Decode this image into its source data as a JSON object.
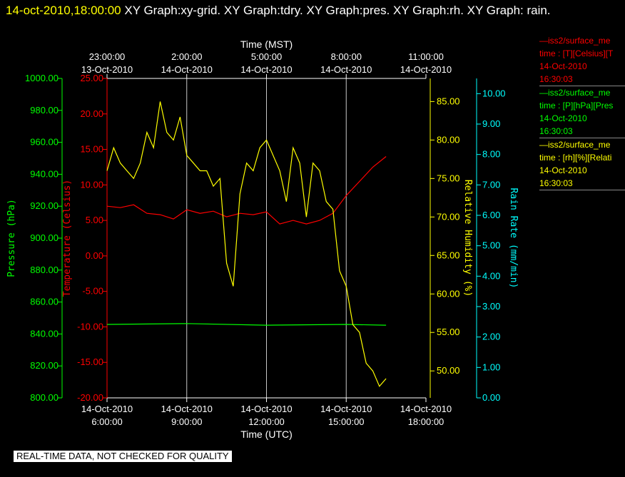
{
  "header": {
    "timestamp": "14-oct-2010,18:00:00",
    "graphs": "XY Graph:xy-grid.  XY Graph:tdry.  XY Graph:pres.  XY Graph:rh.  XY Graph: rain."
  },
  "notice": "REAL-TIME DATA, NOT CHECKED FOR QUALITY",
  "legend": [
    {
      "name": "—iss2/surface_me",
      "line2": "time : [T][Celsius][T",
      "line3": "14-Oct-2010",
      "line4": "16:30:03",
      "color": "#ff0000"
    },
    {
      "name": "—iss2/surface_me",
      "line2": "time : [P][hPa][Pres",
      "line3": "14-Oct-2010",
      "line4": "16:30:03",
      "color": "#00ff00"
    },
    {
      "name": "—iss2/surface_me",
      "line2": "time : [rh][%][Relati",
      "line3": "14-Oct-2010",
      "line4": "16:30:03",
      "color": "#ffff00"
    }
  ],
  "chart_data": {
    "type": "line",
    "title_top": "Time (MST)",
    "title_bottom": "Time (UTC)",
    "x_ticks_bottom": [
      {
        "date": "14-Oct-2010",
        "time": "6:00:00",
        "hours": 6
      },
      {
        "date": "14-Oct-2010",
        "time": "9:00:00",
        "hours": 9
      },
      {
        "date": "14-Oct-2010",
        "time": "12:00:00",
        "hours": 12
      },
      {
        "date": "14-Oct-2010",
        "time": "15:00:00",
        "hours": 15
      },
      {
        "date": "14-Oct-2010",
        "time": "18:00:00",
        "hours": 18
      }
    ],
    "x_ticks_top": [
      {
        "time": "23:00:00",
        "date": "13-Oct-2010",
        "hours": 6
      },
      {
        "time": "2:00:00",
        "date": "14-Oct-2010",
        "hours": 9
      },
      {
        "time": "5:00:00",
        "date": "14-Oct-2010",
        "hours": 12
      },
      {
        "time": "8:00:00",
        "date": "14-Oct-2010",
        "hours": 15
      },
      {
        "time": "11:00:00",
        "date": "14-Oct-2010",
        "hours": 18
      }
    ],
    "xlim_utc_hours": [
      6,
      18
    ],
    "axes": [
      {
        "id": "pres",
        "label": "Pressure (hPa)",
        "color": "#00ff00",
        "ylim": [
          800,
          1000
        ],
        "ticks": [
          "800.00",
          "820.00",
          "840.00",
          "860.00",
          "880.00",
          "900.00",
          "920.00",
          "940.00",
          "960.00",
          "980.00",
          "1000.00"
        ]
      },
      {
        "id": "temp",
        "label": "Temperature (Celsius)",
        "color": "#ff0000",
        "ylim": [
          -20,
          25
        ],
        "ticks": [
          "-20.00",
          "-15.00",
          "-10.00",
          "-5.00",
          "0.00",
          "5.00",
          "10.00",
          "15.00",
          "20.00",
          "25.00"
        ]
      },
      {
        "id": "rh",
        "label": "Relative Humidity (%)",
        "color": "#ffff00",
        "ylim": [
          46.5,
          88
        ],
        "ticks": [
          "50.00",
          "55.00",
          "60.00",
          "65.00",
          "70.00",
          "75.00",
          "80.00",
          "85.00"
        ]
      },
      {
        "id": "rain",
        "label": "Rain Rate (mm/min)",
        "color": "#00ffff",
        "ylim": [
          0,
          10.5
        ],
        "ticks": [
          "0.00",
          "1.00",
          "2.00",
          "3.00",
          "4.00",
          "5.00",
          "6.00",
          "7.00",
          "8.00",
          "9.00",
          "10.00"
        ]
      }
    ],
    "grid": true,
    "series": [
      {
        "axis": "temp",
        "color": "#ff0000",
        "x": [
          6,
          6.5,
          7,
          7.5,
          8,
          8.5,
          9,
          9.5,
          10,
          10.5,
          11,
          11.5,
          12,
          12.5,
          13,
          13.5,
          14,
          14.5,
          15,
          15.5,
          16,
          16.5
        ],
        "y": [
          7.0,
          6.8,
          7.2,
          6.0,
          5.8,
          5.2,
          6.5,
          6.0,
          6.3,
          5.5,
          6.0,
          5.8,
          6.2,
          4.5,
          5.0,
          4.5,
          5.0,
          6.0,
          8.5,
          10.5,
          12.5,
          14.0
        ]
      },
      {
        "axis": "pres",
        "color": "#00ff00",
        "x": [
          6,
          9,
          12,
          15,
          16.5
        ],
        "y": [
          846,
          846.5,
          845.5,
          846,
          845.5
        ]
      },
      {
        "axis": "rh",
        "color": "#ffff00",
        "x": [
          6,
          6.25,
          6.5,
          6.75,
          7,
          7.25,
          7.5,
          7.75,
          8,
          8.25,
          8.5,
          8.75,
          9,
          9.25,
          9.5,
          9.75,
          10,
          10.25,
          10.5,
          10.75,
          11,
          11.25,
          11.5,
          11.75,
          12,
          12.25,
          12.5,
          12.75,
          13,
          13.25,
          13.5,
          13.75,
          14,
          14.25,
          14.5,
          14.75,
          15,
          15.25,
          15.5,
          15.75,
          16,
          16.25,
          16.5
        ],
        "y": [
          76,
          79,
          77,
          76,
          75,
          77,
          81,
          79,
          85,
          81,
          80,
          83,
          78,
          77,
          76,
          76,
          74,
          75,
          64,
          61,
          73,
          77,
          76,
          79,
          80,
          78,
          76,
          72,
          79,
          77,
          70,
          77,
          76,
          72,
          71,
          63,
          61,
          56,
          55,
          51,
          50,
          48,
          49
        ]
      }
    ]
  }
}
